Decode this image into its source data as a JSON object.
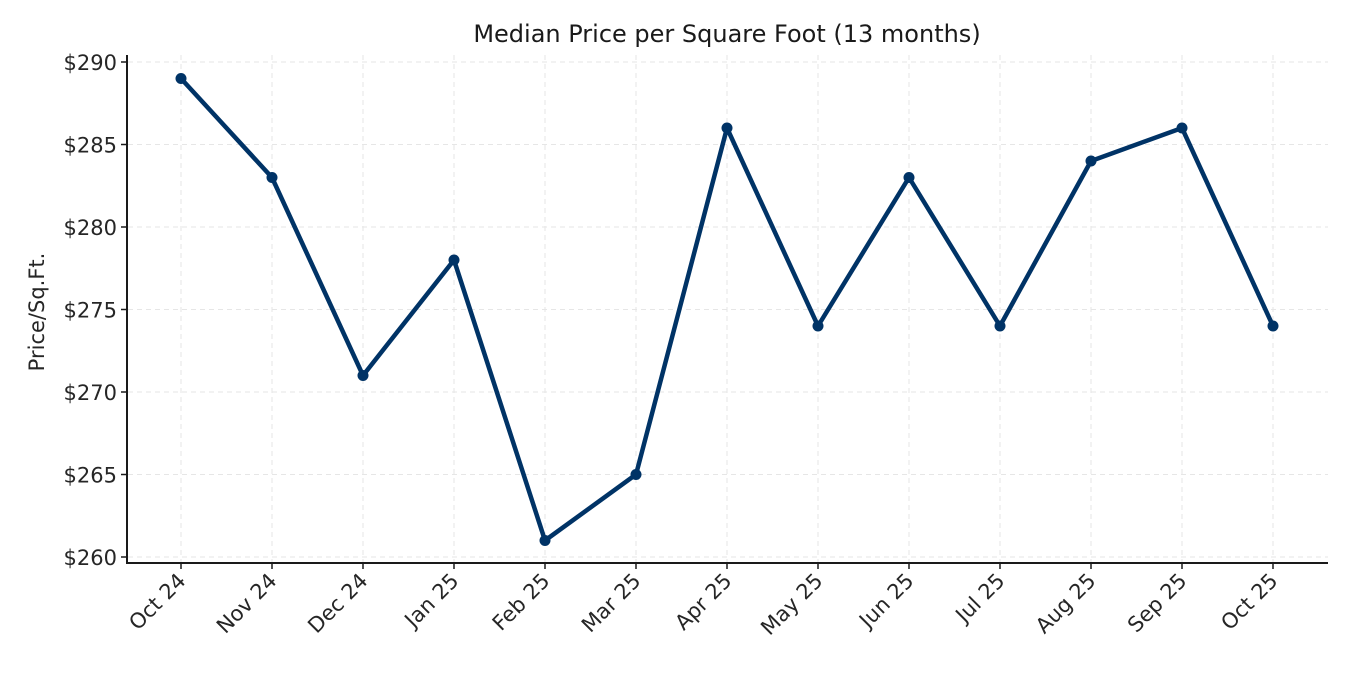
{
  "chart_data": {
    "type": "line",
    "title": "Median Price per Square Foot (13 months)",
    "xlabel": "",
    "ylabel": "Price/Sq.Ft.",
    "categories": [
      "Oct 24",
      "Nov 24",
      "Dec 24",
      "Jan 25",
      "Feb 25",
      "Mar 25",
      "Apr 25",
      "May 25",
      "Jun 25",
      "Jul 25",
      "Aug 25",
      "Sep 25",
      "Oct 25"
    ],
    "series": [
      {
        "name": "Median Price per Sq.Ft.",
        "color": "#003366",
        "values": [
          289,
          283,
          271,
          278,
          261,
          265,
          286,
          274,
          283,
          274,
          284,
          286,
          274
        ]
      }
    ],
    "yticks": [
      260,
      265,
      270,
      275,
      280,
      285,
      290
    ],
    "ytick_labels": [
      "$260",
      "$265",
      "$270",
      "$275",
      "$280",
      "$285",
      "$290"
    ],
    "ylim": [
      259.6,
      290.4
    ],
    "grid": true,
    "legend": null,
    "xtick_rotation": 45
  },
  "colors": {
    "line": "#003366",
    "grid": "#e6e6e6",
    "axis": "#1a1a1a",
    "text": "#262626"
  }
}
